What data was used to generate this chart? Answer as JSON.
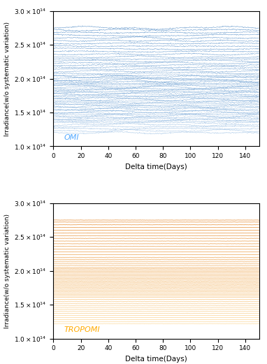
{
  "xlim": [
    0,
    150
  ],
  "ylim": [
    100000000000000.0,
    300000000000000.0
  ],
  "yticks": [
    100000000000000.0,
    150000000000000.0,
    200000000000000.0,
    250000000000000.0,
    300000000000000.0
  ],
  "xticks": [
    0,
    20,
    40,
    60,
    80,
    100,
    120,
    140
  ],
  "xlabel": "Delta time(Days)",
  "ylabel": "Irradiance(w/o systematic variation)",
  "omi_label_color": "#55aaff",
  "tropomi_label_color": "#ffaa00",
  "fig_width": 3.82,
  "fig_height": 5.21,
  "dpi": 100,
  "omi_bases": [
    120000000000000.0,
    123000000000000.0,
    126000000000000.0,
    129000000000000.0,
    132000000000000.0,
    135000000000000.0,
    137000000000000.0,
    139000000000000.0,
    141000000000000.0,
    143000000000000.0,
    145000000000000.0,
    147000000000000.0,
    149000000000000.0,
    151000000000000.0,
    153000000000000.0,
    155000000000000.0,
    157000000000000.0,
    159000000000000.0,
    161000000000000.0,
    163000000000000.0,
    165000000000000.0,
    167000000000000.0,
    169000000000000.0,
    171000000000000.0,
    173000000000000.0,
    175000000000000.0,
    177000000000000.0,
    179000000000000.0,
    181000000000000.0,
    183000000000000.0,
    185000000000000.0,
    187000000000000.0,
    189000000000000.0,
    191000000000000.0,
    193000000000000.0,
    195000000000000.0,
    197000000000000.0,
    199000000000000.0,
    201000000000000.0,
    203000000000000.0,
    205000000000000.0,
    208000000000000.0,
    211000000000000.0,
    214000000000000.0,
    217000000000000.0,
    220000000000000.0,
    223000000000000.0,
    226000000000000.0,
    229000000000000.0,
    232000000000000.0,
    236000000000000.0,
    240000000000000.0,
    244000000000000.0,
    248000000000000.0,
    252000000000000.0,
    256000000000000.0,
    260000000000000.0,
    264000000000000.0,
    268000000000000.0,
    272000000000000.0,
    275000000000000.0
  ],
  "tropomi_bases": [
    122000000000000.0,
    125000000000000.0,
    128000000000000.0,
    131000000000000.0,
    134000000000000.0,
    137000000000000.0,
    140000000000000.0,
    143000000000000.0,
    146000000000000.0,
    149000000000000.0,
    152000000000000.0,
    155000000000000.0,
    158000000000000.0,
    161000000000000.0,
    163000000000000.0,
    165000000000000.0,
    167000000000000.0,
    169000000000000.0,
    171000000000000.0,
    173000000000000.0,
    175000000000000.0,
    177000000000000.0,
    179000000000000.0,
    181000000000000.0,
    183000000000000.0,
    185000000000000.0,
    187000000000000.0,
    189000000000000.0,
    191000000000000.0,
    193000000000000.0,
    195000000000000.0,
    197000000000000.0,
    199000000000000.0,
    201000000000000.0,
    203000000000000.0,
    205000000000000.0,
    208000000000000.0,
    211000000000000.0,
    214000000000000.0,
    217000000000000.0,
    220000000000000.0,
    224000000000000.0,
    228000000000000.0,
    232000000000000.0,
    236000000000000.0,
    240000000000000.0,
    244000000000000.0,
    248000000000000.0,
    252000000000000.0,
    256000000000000.0,
    260000000000000.0,
    264000000000000.0,
    268000000000000.0,
    272000000000000.0,
    275000000000000.0
  ]
}
